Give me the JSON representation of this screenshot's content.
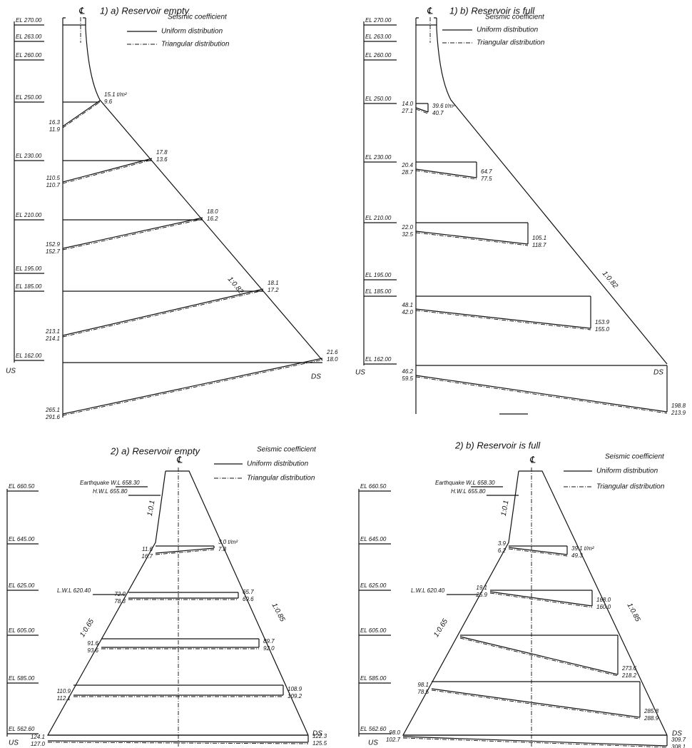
{
  "panels": [
    {
      "title": "1) a) Reservoir empty",
      "centerline": "℄",
      "legend": {
        "heading": "Seismic coefficient",
        "uniform": "Uniform distribution",
        "triangular": "Triangular distribution"
      },
      "elevations": [
        "EL 270.00",
        "EL 263.00",
        "EL 260.00",
        "EL 250.00",
        "EL 230.00",
        "EL 210.00",
        "EL 195.00",
        "EL 185.00",
        "EL 162.00"
      ],
      "levels": [
        {
          "us": [
            "16.3",
            "11.9"
          ],
          "ds": [
            "15.1 t/m²",
            "9.6"
          ]
        },
        {
          "us": [
            "110.5",
            "110.7"
          ],
          "ds": [
            "17.8",
            "13.6"
          ]
        },
        {
          "us": [
            "152.9",
            "152.7"
          ],
          "ds": [
            "18.0",
            "16.2"
          ]
        },
        {
          "us": [
            "213.1",
            "214.1"
          ],
          "ds": [
            "18.1",
            "17.2"
          ]
        },
        {
          "us": [
            "265.1",
            "291.6"
          ],
          "ds": [
            "21.6",
            "18.0"
          ]
        }
      ],
      "slopes": [
        "1:0.82"
      ],
      "us": "US",
      "ds": "DS"
    },
    {
      "title": "1) b) Reservoir is full",
      "centerline": "℄",
      "legend": {
        "heading": "Seismic coefficient",
        "uniform": "Uniform distribution",
        "triangular": "Triangular distribution"
      },
      "elevations": [
        "EL 270.00",
        "EL 263.00",
        "EL 260.00",
        "EL 250.00",
        "EL 230.00",
        "EL 210.00",
        "EL 195.00",
        "EL 185.00",
        "EL 162.00"
      ],
      "levels": [
        {
          "us": [
            "14.0",
            "27.1"
          ],
          "ds": [
            "39.6 t/m²",
            "40.7"
          ]
        },
        {
          "us": [
            "20.4",
            "28.7"
          ],
          "ds": [
            "64.7",
            "77.5"
          ]
        },
        {
          "us": [
            "22.0",
            "32.5"
          ],
          "ds": [
            "105.1",
            "118.7"
          ]
        },
        {
          "us": [
            "48.1",
            "42.0"
          ],
          "ds": [
            "153.9",
            "155.0"
          ]
        },
        {
          "us": [
            "46.2",
            "59.5"
          ],
          "ds": [
            "198.8",
            "213.9"
          ]
        }
      ],
      "slopes": [
        "1:0.82"
      ],
      "us": "US",
      "ds": "DS"
    },
    {
      "title": "2) a) Reservoir empty",
      "centerline": "℄",
      "legend": {
        "heading": "Seismic coefficient",
        "uniform": "Uniform distribution",
        "triangular": "Triangular distribution"
      },
      "elevations": [
        "EL 660.50",
        "EL 645.00",
        "EL 625.00",
        "EL 605.00",
        "EL 585.00",
        "EL 562.60"
      ],
      "water_levels": [
        "Earthquake W.L 658.30",
        "H.W.L 655.80",
        "L.W.L 620.40"
      ],
      "levels": [
        {
          "us": [
            "11.6",
            "16.7"
          ],
          "ds": [
            "3.0 t/m²",
            "7.8"
          ]
        },
        {
          "us": [
            "72.0",
            "78.3"
          ],
          "ds": [
            "65.7",
            "69.6"
          ]
        },
        {
          "us": [
            "91.6",
            "93.6"
          ],
          "ds": [
            "89.7",
            "92.0"
          ]
        },
        {
          "us": [
            "110.9",
            "112.1"
          ],
          "ds": [
            "108.9",
            "109.2"
          ]
        },
        {
          "us": [
            "124.1",
            "127.0"
          ],
          "ds": [
            "122.3",
            "125.5"
          ]
        }
      ],
      "slopes": [
        "1:0.1",
        "1:0.65",
        "1:0.85"
      ],
      "us": "US",
      "ds": "DS"
    },
    {
      "title": "2) b) Reservoir is full",
      "centerline": "℄",
      "legend": {
        "heading": "Seismic coefficient",
        "uniform": "Uniform distribution",
        "triangular": "Triangular distribution"
      },
      "elevations": [
        "EL 660.50",
        "EL 645.00",
        "EL 625.00",
        "EL 605.00",
        "EL 585.00",
        "EL 562.60"
      ],
      "water_levels": [
        "Earthquake W.L 658.30",
        "H.W.L 655.80",
        "L.W.L 620.40"
      ],
      "levels": [
        {
          "us": [
            "3.9",
            "6.2"
          ],
          "ds": [
            "39.1 t/m²",
            "49.3"
          ]
        },
        {
          "us": [
            "19.1",
            "25.9"
          ],
          "ds": [
            "168.0",
            "160.0"
          ]
        },
        {
          "us": [],
          "ds": [
            "273.6",
            "218.2"
          ]
        },
        {
          "us": [
            "98.1",
            "78.5"
          ],
          "ds": [
            "285.8",
            "288.9"
          ]
        },
        {
          "us": [
            "98.0",
            "102.7"
          ],
          "ds": [
            "309.7",
            "308.1"
          ]
        }
      ],
      "slopes": [
        "1:0.1",
        "1:0.65",
        "1:0.85"
      ],
      "us": "US",
      "ds": "DS"
    }
  ]
}
